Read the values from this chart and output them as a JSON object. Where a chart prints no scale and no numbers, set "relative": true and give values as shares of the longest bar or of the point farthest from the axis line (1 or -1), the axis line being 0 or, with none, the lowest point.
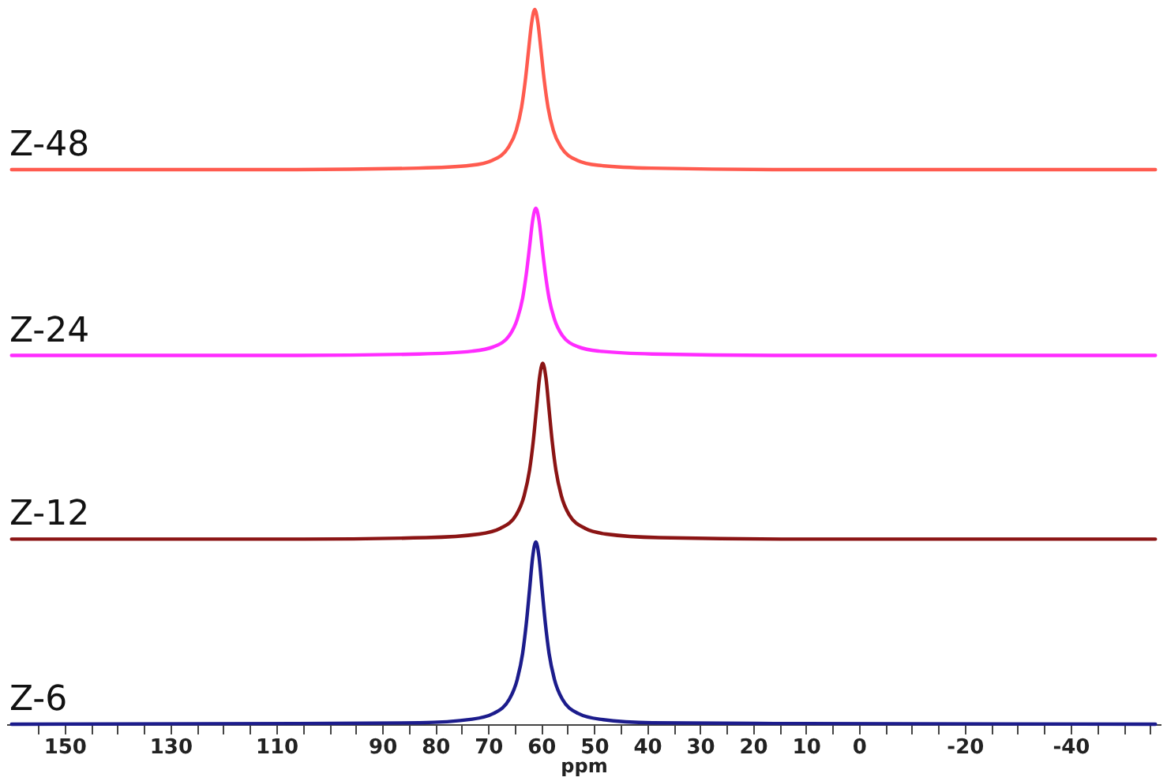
{
  "chart_data": {
    "type": "line",
    "relative": true,
    "xlabel": "ppm",
    "xlim": [
      161,
      -57
    ],
    "xticks": [
      {
        "value": 155,
        "label": null
      },
      150,
      {
        "value": 145,
        "label": null
      },
      {
        "value": 140,
        "label": null
      },
      {
        "value": 135,
        "label": null
      },
      130,
      {
        "value": 125,
        "label": null
      },
      {
        "value": 120,
        "label": null
      },
      {
        "value": 115,
        "label": null
      },
      110,
      {
        "value": 105,
        "label": null
      },
      {
        "value": 100,
        "label": null
      },
      {
        "value": 95,
        "label": null
      },
      90,
      {
        "value": 85,
        "label": null
      },
      80,
      {
        "value": 75,
        "label": null
      },
      70,
      {
        "value": 65,
        "label": null
      },
      60,
      {
        "value": 55,
        "label": null
      },
      50,
      {
        "value": 45,
        "label": null
      },
      40,
      {
        "value": 35,
        "label": null
      },
      30,
      {
        "value": 25,
        "label": null
      },
      20,
      {
        "value": 15,
        "label": null
      },
      10,
      {
        "value": 5,
        "label": null
      },
      0,
      {
        "value": -5,
        "label": null
      },
      {
        "value": -10,
        "label": null
      },
      {
        "value": -15,
        "label": null
      },
      -20,
      {
        "value": -25,
        "label": null
      },
      {
        "value": -30,
        "label": null
      },
      {
        "value": -35,
        "label": null
      },
      -40,
      {
        "value": -45,
        "label": null
      },
      {
        "value": -50,
        "label": null
      },
      {
        "value": -55,
        "label": null
      }
    ],
    "legend": false,
    "grid": false,
    "marker": "none",
    "line_style": "solid",
    "series": [
      {
        "name": "Z-48",
        "color": "#ff5b4f",
        "x": [
          -56,
          16.2,
          39.2,
          49.2,
          53.2,
          56.2,
          57.7,
          58.7,
          59.4,
          60,
          60.6,
          61.2,
          61.8,
          62.4,
          63,
          63.7,
          64.7,
          66.2,
          69.2,
          73.2,
          83.2,
          106.2,
          160
        ],
        "values": [
          0.776,
          0.776,
          0.778,
          0.782,
          0.789,
          0.807,
          0.831,
          0.863,
          0.9,
          0.941,
          0.981,
          1.0,
          0.981,
          0.941,
          0.9,
          0.863,
          0.831,
          0.807,
          0.789,
          0.782,
          0.778,
          0.776,
          0.776
        ]
      },
      {
        "name": "Z-24",
        "color": "#ff2cff",
        "x": [
          -56,
          16,
          39,
          49,
          53,
          56,
          57.5,
          58.5,
          59.2,
          59.8,
          60.4,
          61,
          61.6,
          62.2,
          62.8,
          63.5,
          64.5,
          66,
          69,
          73,
          83,
          106,
          160
        ],
        "values": [
          0.516,
          0.516,
          0.518,
          0.522,
          0.528,
          0.544,
          0.567,
          0.596,
          0.63,
          0.667,
          0.705,
          0.722,
          0.705,
          0.667,
          0.63,
          0.596,
          0.567,
          0.544,
          0.528,
          0.522,
          0.518,
          0.516,
          0.516
        ]
      },
      {
        "name": "Z-12",
        "color": "#8b1414",
        "x": [
          -56,
          14.7,
          37.7,
          47.7,
          51.7,
          54.7,
          56.2,
          57.2,
          57.9,
          58.5,
          59.1,
          59.7,
          60.3,
          60.9,
          61.5,
          62.2,
          63.2,
          64.7,
          67.7,
          71.7,
          81.7,
          104.7,
          160
        ],
        "values": [
          0.259,
          0.259,
          0.261,
          0.266,
          0.274,
          0.293,
          0.32,
          0.355,
          0.395,
          0.44,
          0.485,
          0.505,
          0.485,
          0.44,
          0.395,
          0.355,
          0.32,
          0.293,
          0.274,
          0.266,
          0.261,
          0.259,
          0.259
        ]
      },
      {
        "name": "Z-6",
        "color": "#1c1c8c",
        "x": [
          -56,
          16,
          39,
          49,
          53,
          56,
          57.5,
          58.5,
          59.2,
          59.8,
          60.4,
          61,
          61.6,
          62.2,
          62.8,
          63.5,
          64.5,
          66,
          69,
          73,
          83,
          106,
          160
        ],
        "values": [
          0,
          0.001,
          0.002,
          0.007,
          0.015,
          0.035,
          0.063,
          0.099,
          0.141,
          0.187,
          0.234,
          0.255,
          0.234,
          0.187,
          0.141,
          0.099,
          0.063,
          0.035,
          0.015,
          0.007,
          0.002,
          0.001,
          0
        ]
      }
    ]
  }
}
